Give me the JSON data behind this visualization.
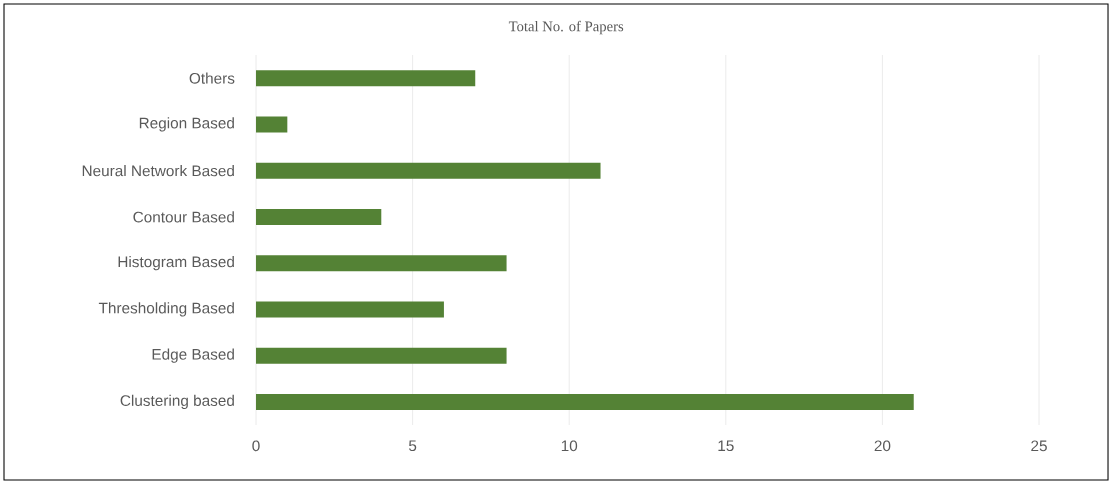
{
  "chart_data": {
    "type": "bar",
    "orientation": "horizontal",
    "title": "Total No. of Papers",
    "categories": [
      "Others",
      "Region Based",
      "Neural Network Based",
      "Contour Based",
      "Histogram Based",
      "Thresholding Based",
      "Edge Based",
      "Clustering based"
    ],
    "values": [
      7,
      1,
      11,
      4,
      8,
      6,
      8,
      21
    ],
    "color": "#548235",
    "xlim": [
      0,
      25
    ],
    "xticks": [
      0,
      5,
      10,
      15,
      20,
      25
    ],
    "grid": "x"
  }
}
